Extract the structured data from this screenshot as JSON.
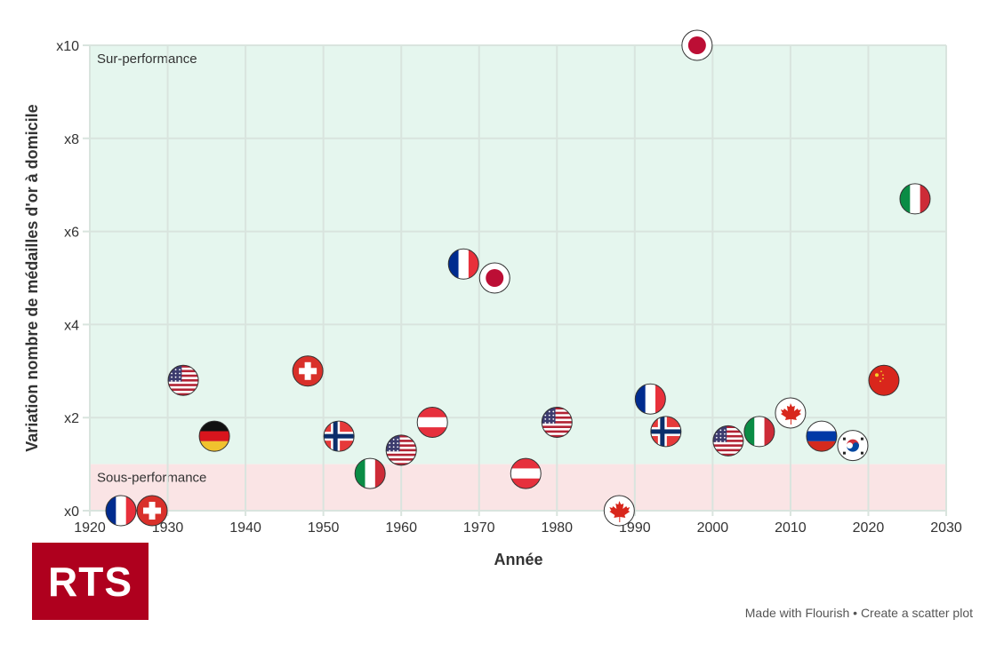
{
  "footer": {
    "made_with": "Made with Flourish",
    "separator": "•",
    "create_link": "Create a scatter plot"
  },
  "logo": {
    "text": "RTS",
    "color": "#af001e"
  },
  "chart_data": {
    "type": "scatter",
    "title": "",
    "xlabel": "Année",
    "ylabel": "Variation nombre de médailles d'or à domicile",
    "xlim": [
      1920,
      2030
    ],
    "ylim": [
      0,
      10
    ],
    "x_ticks": [
      1920,
      1930,
      1940,
      1950,
      1960,
      1970,
      1980,
      1990,
      2000,
      2010,
      2020,
      2030
    ],
    "y_ticks": [
      0,
      2,
      4,
      6,
      8,
      10
    ],
    "y_tick_labels": [
      "x0",
      "x2",
      "x4",
      "x6",
      "x8",
      "x10"
    ],
    "grid": true,
    "zones": [
      {
        "label": "Sur-performance",
        "from": 1,
        "to": 10,
        "color": "#e5f6ee"
      },
      {
        "label": "Sous-performance",
        "from": 0,
        "to": 1,
        "color": "#fae4e5"
      }
    ],
    "points": [
      {
        "year": 1924,
        "value": 0,
        "country": "France"
      },
      {
        "year": 1928,
        "value": 0,
        "country": "Switzerland"
      },
      {
        "year": 1932,
        "value": 2.8,
        "country": "USA"
      },
      {
        "year": 1936,
        "value": 1.6,
        "country": "Germany"
      },
      {
        "year": 1948,
        "value": 3.0,
        "country": "Switzerland"
      },
      {
        "year": 1952,
        "value": 1.6,
        "country": "Norway"
      },
      {
        "year": 1956,
        "value": 0.8,
        "country": "Italy"
      },
      {
        "year": 1960,
        "value": 1.3,
        "country": "USA"
      },
      {
        "year": 1964,
        "value": 1.9,
        "country": "Austria"
      },
      {
        "year": 1968,
        "value": 5.3,
        "country": "France"
      },
      {
        "year": 1972,
        "value": 5.0,
        "country": "Japan"
      },
      {
        "year": 1976,
        "value": 0.8,
        "country": "Austria"
      },
      {
        "year": 1980,
        "value": 1.9,
        "country": "USA"
      },
      {
        "year": 1988,
        "value": 0,
        "country": "Canada"
      },
      {
        "year": 1992,
        "value": 2.4,
        "country": "France"
      },
      {
        "year": 1994,
        "value": 1.7,
        "country": "Norway"
      },
      {
        "year": 1998,
        "value": 10,
        "country": "Japan"
      },
      {
        "year": 2002,
        "value": 1.5,
        "country": "USA"
      },
      {
        "year": 2006,
        "value": 1.7,
        "country": "Italy"
      },
      {
        "year": 2010,
        "value": 2.1,
        "country": "Canada"
      },
      {
        "year": 2014,
        "value": 1.6,
        "country": "Russia"
      },
      {
        "year": 2018,
        "value": 1.4,
        "country": "South Korea"
      },
      {
        "year": 2022,
        "value": 2.8,
        "country": "China"
      },
      {
        "year": 2026,
        "value": 6.7,
        "country": "Italy"
      }
    ]
  }
}
